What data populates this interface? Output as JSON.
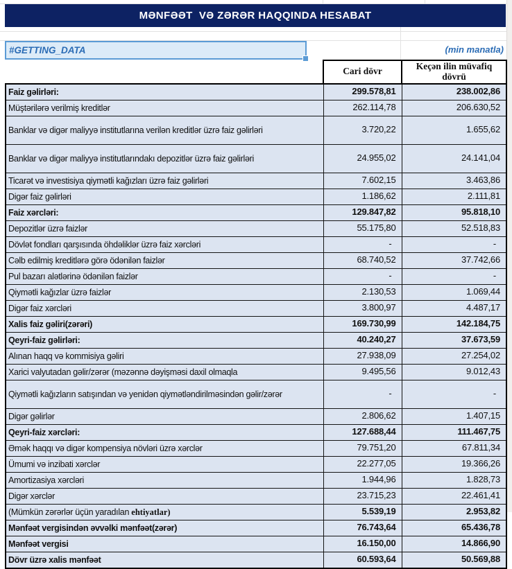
{
  "title": "MƏNFƏƏT  VƏ ZƏRƏR HAQQINDA HESABAT",
  "status_cell": "#GETTING_DATA",
  "unit_note": "(min manatla)",
  "columns": [
    "Cari dövr",
    "Keçən ilin müvafiq dövrü"
  ],
  "colors": {
    "banner_navy": "#0d2263",
    "row_fill": "#dce4f1",
    "accent_blue": "#2b6cb5",
    "selection_border": "#5b9bd5"
  },
  "rows": [
    {
      "label": "Faiz gəlirləri:",
      "current": "299.578,81",
      "previous": "238.002,86",
      "bold": true
    },
    {
      "label": "Müştərilərə verilmiş kreditlər",
      "current": "262.114,78",
      "previous": "206.630,52",
      "bold": false
    },
    {
      "label": "Banklar və digər maliyyə institutlarına verilən kreditlər üzrə faiz gəlirləri",
      "current": "3.720,22",
      "previous": "1.655,62",
      "bold": false
    },
    {
      "label": "Banklar və digər maliyyə institutlarındakı depozitlər üzrə faiz gəlirləri",
      "current": "24.955,02",
      "previous": "24.141,04",
      "bold": false
    },
    {
      "label": "Ticarət və investisiya qiymətli kağızları üzrə faiz gəlirləri",
      "current": "7.602,15",
      "previous": "3.463,86",
      "bold": false
    },
    {
      "label": "Digər faiz gəlirləri",
      "current": "1.186,62",
      "previous": "2.111,81",
      "bold": false
    },
    {
      "label": "Faiz xərcləri:",
      "current": "129.847,82",
      "previous": "95.818,10",
      "bold": true
    },
    {
      "label": "Depozitlər üzrə faizlər",
      "current": "55.175,80",
      "previous": "52.518,83",
      "bold": false
    },
    {
      "label": "Dövlət fondları qarşısında öhdəliklər üzrə faiz xərcləri",
      "current": "-",
      "previous": "-",
      "bold": false
    },
    {
      "label": "Cəlb edilmiş kreditlərə görə ödənilən faizlər",
      "current": "68.740,52",
      "previous": "37.742,66",
      "bold": false
    },
    {
      "label": "Pul bazarı alətlərinə ödənilən faizlər",
      "current": "-",
      "previous": "-",
      "bold": false
    },
    {
      "label": "Qiymətli kağızlar üzrə faizlər",
      "current": "2.130,53",
      "previous": "1.069,44",
      "bold": false
    },
    {
      "label": "Digər faiz xərcləri",
      "current": "3.800,97",
      "previous": "4.487,17",
      "bold": false
    },
    {
      "label": "Xalis faiz gəliri(zərəri)",
      "current": "169.730,99",
      "previous": "142.184,75",
      "bold": true
    },
    {
      "label": "Qeyri-faiz gəlirləri:",
      "current": "40.240,27",
      "previous": "37.673,59",
      "bold": true
    },
    {
      "label": "Alınan haqq və kommisiya gəliri",
      "current": "27.938,09",
      "previous": "27.254,02",
      "bold": false
    },
    {
      "label": "Xarici valyutadan gəlir/zərər (məzənnə dəyişməsi daxil olmaqla",
      "current": "9.495,56",
      "previous": "9.012,43",
      "bold": false
    },
    {
      "label": "Qiymətli kağızların satışından və yenidən qiymətləndirilməsindən gəlir/zərər",
      "current": "-",
      "previous": "-",
      "bold": false
    },
    {
      "label": "Digər gəlirlər",
      "current": "2.806,62",
      "previous": "1.407,15",
      "bold": false
    },
    {
      "label": "Qeyri-faiz xərcləri:",
      "current": "127.688,44",
      "previous": "111.467,75",
      "bold": true
    },
    {
      "label": "Əmək haqqı və digər kompensiya növləri üzrə xərclər",
      "current": "79.751,20",
      "previous": "67.811,34",
      "bold": false
    },
    {
      "label": "Ümumi və inzibati xərclər",
      "current": "22.277,05",
      "previous": "19.366,26",
      "bold": false
    },
    {
      "label": "Amortizasiya xərcləri",
      "current": "1.944,96",
      "previous": "1.828,73",
      "bold": false
    },
    {
      "label": "Digər xərclər",
      "current": "23.715,23",
      "previous": "22.461,41",
      "bold": false
    },
    {
      "label": "(Mümkün zərərlər üçün yaradılan ",
      "label_serif": "ehtiyatlar)",
      "current": "5.539,19",
      "previous": "2.953,82",
      "bold": true
    },
    {
      "label": "Mənfəət vergisindən əvvəlki mənfəət(zərər)",
      "current": "76.743,64",
      "previous": "65.436,78",
      "bold": true
    },
    {
      "label": "Mənfəət vergisi",
      "current": "16.150,00",
      "previous": "14.866,90",
      "bold": true
    },
    {
      "label": "Dövr üzrə xalis mənfəət",
      "current": "60.593,64",
      "previous": "50.569,88",
      "bold": true
    }
  ]
}
